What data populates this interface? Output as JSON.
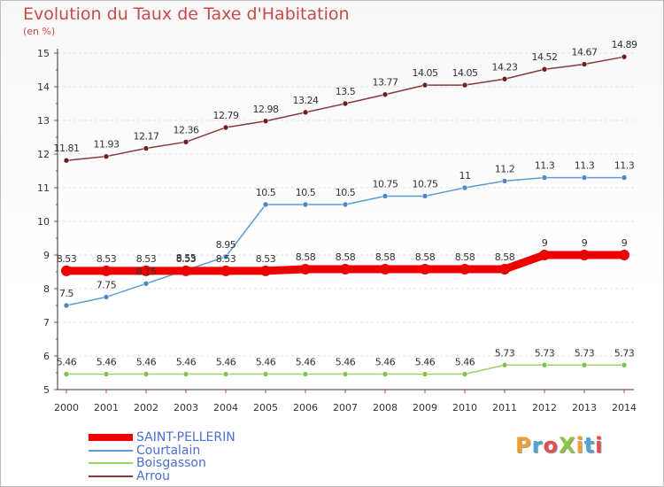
{
  "header": {
    "title": "Evolution du Taux de Taxe d'Habitation",
    "subtitle": "(en %)"
  },
  "logo": {
    "text": "ProXiti",
    "colors": [
      "#f0a030",
      "#4da3d8",
      "#e05050",
      "#8cc63f",
      "#f0a030",
      "#4da3d8",
      "#e05050"
    ]
  },
  "chart_data": {
    "type": "line",
    "title": "Evolution du Taux de Taxe d'Habitation",
    "ylabel": "(en %)",
    "xlabel": "",
    "x": [
      "2000",
      "2001",
      "2002",
      "2003",
      "2004",
      "2005",
      "2006",
      "2007",
      "2008",
      "2009",
      "2010",
      "2011",
      "2012",
      "2013",
      "2014"
    ],
    "ylim": [
      5,
      15
    ],
    "yticks": [
      "5",
      "6",
      "7",
      "8",
      "9",
      "10",
      "11",
      "12",
      "13",
      "14",
      "15"
    ],
    "grid": "dashed-horizontal",
    "legend_position": "bottom-left",
    "series": [
      {
        "name": "SAINT-PELLERIN",
        "color": "#ee0000",
        "bold": true,
        "values": [
          8.53,
          8.53,
          8.53,
          8.53,
          8.53,
          8.53,
          8.58,
          8.58,
          8.58,
          8.58,
          8.58,
          8.58,
          9,
          9,
          9
        ],
        "labels": [
          "8.53",
          "8.53",
          "8.53",
          "8.53",
          "8.53",
          "8.53",
          "8.58",
          "8.58",
          "8.58",
          "8.58",
          "8.58",
          "8.58",
          "9",
          "9",
          "9"
        ]
      },
      {
        "name": "Courtalain",
        "color": "#5b9bd5",
        "dot": "#4a86c8",
        "values": [
          7.5,
          7.75,
          8.15,
          8.55,
          8.95,
          10.5,
          10.5,
          10.5,
          10.75,
          10.75,
          11,
          11.2,
          11.3,
          11.3,
          11.3
        ],
        "labels": [
          "7.5",
          "7.75",
          "8.15",
          "8.55",
          "8.95",
          "10.5",
          "10.5",
          "10.5",
          "10.75",
          "10.75",
          "11",
          "11.2",
          "11.3",
          "11.3",
          "11.3"
        ]
      },
      {
        "name": "Boisgasson",
        "color": "#9ad26a",
        "dot": "#7cc44a",
        "values": [
          5.46,
          5.46,
          5.46,
          5.46,
          5.46,
          5.46,
          5.46,
          5.46,
          5.46,
          5.46,
          5.46,
          5.73,
          5.73,
          5.73,
          5.73
        ],
        "labels": [
          "5.46",
          "5.46",
          "5.46",
          "5.46",
          "5.46",
          "5.46",
          "5.46",
          "5.46",
          "5.46",
          "5.46",
          "5.46",
          "5.73",
          "5.73",
          "5.73",
          "5.73"
        ]
      },
      {
        "name": "Arrou",
        "color": "#8b3a3a",
        "dot": "#6e1e1e",
        "values": [
          11.81,
          11.93,
          12.17,
          12.36,
          12.79,
          12.98,
          13.24,
          13.5,
          13.77,
          14.05,
          14.05,
          14.23,
          14.52,
          14.67,
          14.89
        ],
        "labels": [
          "11.81",
          "11.93",
          "12.17",
          "12.36",
          "12.79",
          "12.98",
          "13.24",
          "13.5",
          "13.77",
          "14.05",
          "14.05",
          "14.23",
          "14.52",
          "14.67",
          "14.89"
        ]
      }
    ]
  }
}
